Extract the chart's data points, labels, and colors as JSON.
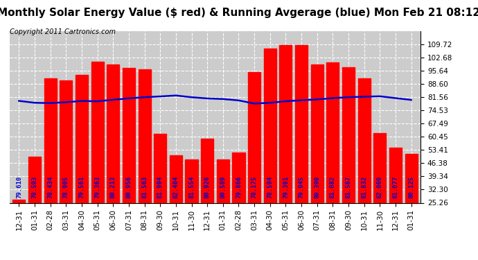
{
  "title": "Monthly Solar Energy Value ($ red) & Running Avgerage (blue) Mon Feb 21 08:12",
  "copyright": "Copyright 2011 Cartronics.com",
  "categories": [
    "12-31",
    "01-31",
    "02-28",
    "03-31",
    "04-30",
    "05-31",
    "06-30",
    "07-31",
    "08-31",
    "09-30",
    "10-31",
    "11-30",
    "12-31",
    "01-31",
    "02-28",
    "03-31",
    "04-30",
    "05-31",
    "06-30",
    "07-31",
    "08-31",
    "09-30",
    "10-31",
    "11-30",
    "12-31",
    "01-31"
  ],
  "bar_values": [
    27.0,
    50.0,
    91.5,
    90.5,
    93.5,
    100.5,
    99.0,
    97.0,
    96.5,
    62.0,
    50.5,
    48.5,
    59.5,
    48.5,
    52.0,
    95.0,
    107.5,
    109.5,
    109.5,
    99.0,
    100.0,
    97.5,
    91.5,
    62.5,
    54.5,
    51.5
  ],
  "avg_values": [
    79.61,
    78.593,
    78.434,
    78.905,
    79.561,
    79.363,
    80.213,
    80.956,
    81.563,
    81.994,
    82.484,
    81.554,
    80.926,
    80.589,
    79.866,
    78.175,
    78.594,
    79.391,
    79.945,
    80.39,
    81.082,
    81.567,
    81.832,
    82.069,
    81.077,
    80.125
  ],
  "bar_color": "#ff0000",
  "avg_color": "#0000cc",
  "bg_color": "#ffffff",
  "grid_color": "#ffffff",
  "plot_bg_color": "#cccccc",
  "ylim": [
    25.26,
    116.76
  ],
  "yticks": [
    25.26,
    32.3,
    39.34,
    46.38,
    53.41,
    60.45,
    67.49,
    74.53,
    81.56,
    88.6,
    95.64,
    102.68,
    109.72
  ],
  "title_fontsize": 11,
  "copyright_fontsize": 7,
  "tick_fontsize": 7.5,
  "bar_label_fontsize": 6.5,
  "avg_label_fontsize": 6.5
}
